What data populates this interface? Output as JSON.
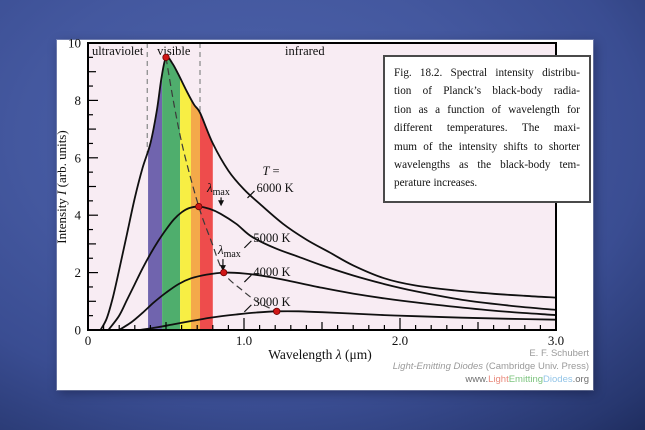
{
  "page": {
    "kind": "textbook-figure-slide"
  },
  "figure_caption": {
    "lines": [
      "Fig. 18.2. Spectral intensity distribu-",
      "tion of Planck’s black-body radia-",
      "tion as a function of wavelength for",
      "different temperatures. The maxi-",
      "mum of the intensity shifts to shorter",
      "wavelengths as the black-body tem-",
      "perature increases."
    ]
  },
  "attribution": {
    "author": "E. F. Schubert",
    "book_italic": "Light-Emitting Diodes",
    "book_rest": " (Cambridge Univ. Press)",
    "url_segments": [
      {
        "text": "www.",
        "color": "#6f6f6f"
      },
      {
        "text": "Light",
        "color": "#e98a7c"
      },
      {
        "text": "Emitting",
        "color": "#7cc47e"
      },
      {
        "text": "Diodes",
        "color": "#93c5e8"
      },
      {
        "text": ".org",
        "color": "#6f6f6f"
      }
    ]
  },
  "chart_data": {
    "type": "line",
    "title": "",
    "xlabel": "Wavelength λ (μm)",
    "ylabel": "Intensity I (arb. units)",
    "xlabel_parts": [
      {
        "t": "Wavelength ",
        "i": 0
      },
      {
        "t": "λ",
        "i": 1
      },
      {
        "t": "  (μm)",
        "i": 0
      }
    ],
    "ylabel_parts": [
      {
        "t": "Intensity  ",
        "i": 0
      },
      {
        "t": "I",
        "i": 1
      },
      {
        "t": "  (arb. units)",
        "i": 0
      }
    ],
    "xlim": [
      0,
      3.0
    ],
    "ylim": [
      0,
      10
    ],
    "x_major_ticks": [
      0,
      1.0,
      2.0,
      3.0
    ],
    "x_tick_labels": [
      "0",
      "1.0",
      "2.0",
      "3.0"
    ],
    "y_major_ticks": [
      0,
      2,
      4,
      6,
      8,
      10
    ],
    "y_tick_labels": [
      "0",
      "2",
      "4",
      "6",
      "8",
      "10"
    ],
    "grid": false,
    "legend": "inline-curve-labels",
    "plot_bg_color": "#f8ecf3",
    "regions": [
      {
        "label": "ultraviolet",
        "from": 0,
        "to": 0.38,
        "label_x": 0.19
      },
      {
        "label": "visible",
        "from": 0.38,
        "to": 0.718,
        "label_x": 0.55
      },
      {
        "label": "infrared",
        "from": 0.718,
        "to": 3.0,
        "label_x": 1.39
      }
    ],
    "region_label_y": 9.72,
    "visible_spectrum_bands": [
      {
        "name": "violet",
        "color": "#7064ae",
        "from": 0.385,
        "to": 0.475
      },
      {
        "name": "green",
        "color": "#4fae6d",
        "from": 0.475,
        "to": 0.59
      },
      {
        "name": "yellow",
        "color": "#f7ee44",
        "from": 0.59,
        "to": 0.66
      },
      {
        "name": "orange",
        "color": "#f4a94a",
        "from": 0.66,
        "to": 0.718
      },
      {
        "name": "red",
        "color": "#ee4c4c",
        "from": 0.718,
        "to": 0.8
      }
    ],
    "series": [
      {
        "name": "6000 K",
        "label_prefix": "T =",
        "label_pos": [
          1.08,
          4.95
        ],
        "peak": [
          0.5,
          9.5
        ],
        "points": [
          [
            0.08,
            0
          ],
          [
            0.12,
            0.4
          ],
          [
            0.16,
            1.15
          ],
          [
            0.2,
            2.1
          ],
          [
            0.25,
            3.35
          ],
          [
            0.3,
            4.6
          ],
          [
            0.35,
            5.65
          ],
          [
            0.4,
            6.5
          ],
          [
            0.44,
            7.6
          ],
          [
            0.47,
            8.75
          ],
          [
            0.5,
            9.5
          ],
          [
            0.54,
            9.3
          ],
          [
            0.58,
            8.9
          ],
          [
            0.63,
            8.35
          ],
          [
            0.68,
            7.85
          ],
          [
            0.72,
            7.55
          ],
          [
            0.8,
            6.5
          ],
          [
            0.9,
            5.55
          ],
          [
            1.0,
            4.9
          ],
          [
            1.1,
            4.4
          ],
          [
            1.25,
            3.7
          ],
          [
            1.4,
            3.15
          ],
          [
            1.55,
            2.7
          ],
          [
            1.7,
            2.25
          ],
          [
            1.9,
            1.8
          ],
          [
            2.1,
            1.55
          ],
          [
            2.35,
            1.38
          ],
          [
            2.6,
            1.26
          ],
          [
            2.8,
            1.19
          ],
          [
            3.0,
            1.13
          ]
        ]
      },
      {
        "name": "5000 K",
        "label_prefix": "",
        "label_pos": [
          1.06,
          3.21
        ],
        "peak": [
          0.71,
          4.3
        ],
        "points": [
          [
            0.13,
            0
          ],
          [
            0.2,
            0.5
          ],
          [
            0.25,
            1.05
          ],
          [
            0.3,
            1.6
          ],
          [
            0.35,
            2.15
          ],
          [
            0.4,
            2.65
          ],
          [
            0.45,
            3.1
          ],
          [
            0.5,
            3.5
          ],
          [
            0.55,
            3.85
          ],
          [
            0.6,
            4.1
          ],
          [
            0.65,
            4.25
          ],
          [
            0.71,
            4.3
          ],
          [
            0.78,
            4.22
          ],
          [
            0.85,
            4.05
          ],
          [
            0.95,
            3.7
          ],
          [
            1.05,
            3.25
          ],
          [
            1.2,
            2.85
          ],
          [
            1.35,
            2.55
          ],
          [
            1.5,
            2.25
          ],
          [
            1.7,
            1.9
          ],
          [
            1.9,
            1.6
          ],
          [
            2.1,
            1.35
          ],
          [
            2.4,
            1.05
          ],
          [
            2.7,
            0.85
          ],
          [
            3.0,
            0.7
          ]
        ]
      },
      {
        "name": "4000 K",
        "label_prefix": "",
        "label_pos": [
          1.06,
          2.02
        ],
        "peak": [
          0.87,
          2.0
        ],
        "points": [
          [
            0.2,
            0
          ],
          [
            0.28,
            0.28
          ],
          [
            0.35,
            0.6
          ],
          [
            0.42,
            0.95
          ],
          [
            0.5,
            1.3
          ],
          [
            0.58,
            1.6
          ],
          [
            0.66,
            1.8
          ],
          [
            0.76,
            1.93
          ],
          [
            0.87,
            2.0
          ],
          [
            1.0,
            1.97
          ],
          [
            1.15,
            1.86
          ],
          [
            1.3,
            1.7
          ],
          [
            1.5,
            1.47
          ],
          [
            1.7,
            1.27
          ],
          [
            1.9,
            1.1
          ],
          [
            2.1,
            0.96
          ],
          [
            2.4,
            0.78
          ],
          [
            2.7,
            0.63
          ],
          [
            3.0,
            0.52
          ]
        ]
      },
      {
        "name": "3000 K",
        "label_prefix": "",
        "label_pos": [
          1.06,
          0.98
        ],
        "peak": [
          1.21,
          0.65
        ],
        "points": [
          [
            0.33,
            0
          ],
          [
            0.45,
            0.1
          ],
          [
            0.55,
            0.2
          ],
          [
            0.67,
            0.32
          ],
          [
            0.8,
            0.44
          ],
          [
            0.95,
            0.54
          ],
          [
            1.08,
            0.61
          ],
          [
            1.21,
            0.65
          ],
          [
            1.35,
            0.65
          ],
          [
            1.5,
            0.62
          ],
          [
            1.7,
            0.57
          ],
          [
            1.9,
            0.52
          ],
          [
            2.1,
            0.48
          ],
          [
            2.4,
            0.43
          ],
          [
            2.7,
            0.39
          ],
          [
            3.0,
            0.36
          ]
        ]
      }
    ],
    "peak_locus": {
      "style": "dashed",
      "points": [
        [
          0.5,
          9.5
        ],
        [
          0.555,
          7.75
        ],
        [
          0.615,
          6.2
        ],
        [
          0.71,
          4.3
        ],
        [
          0.79,
          3.1
        ],
        [
          0.87,
          2.0
        ],
        [
          0.985,
          1.4
        ],
        [
          1.09,
          0.97
        ],
        [
          1.21,
          0.65
        ]
      ]
    },
    "annotations": [
      {
        "label_base": "λ",
        "label_sub": "max",
        "label_pos": [
          0.763,
          4.95
        ],
        "arrow": {
          "x": 0.853,
          "y_from": 4.62,
          "y_to": 4.38
        }
      },
      {
        "label_base": "λ",
        "label_sub": "max",
        "label_pos": [
          0.833,
          2.78
        ],
        "arrow": {
          "x": 0.865,
          "y_from": 2.47,
          "y_to": 2.12
        }
      }
    ],
    "colors": {
      "curve": "#101010",
      "peak_dot": "#d01616",
      "peak_dot_edge": "#6d0000",
      "locus": "#3a3a3a",
      "region_dash": "#8f8f8f",
      "frame": "#000000"
    }
  }
}
